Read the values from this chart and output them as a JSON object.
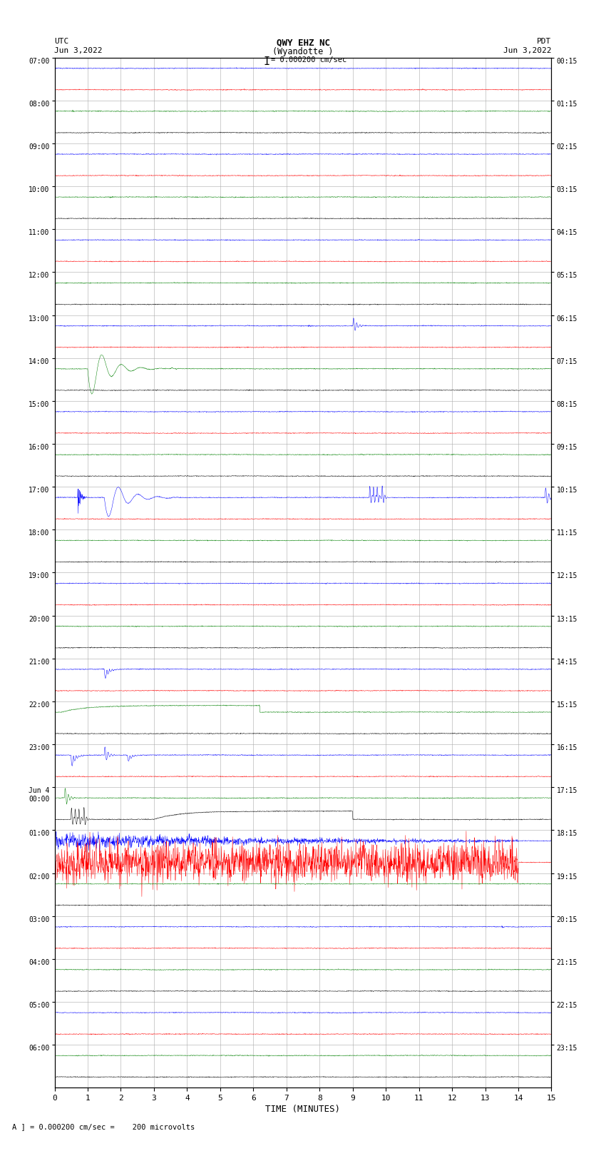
{
  "title_line1": "QWY EHZ NC",
  "title_line2": "(Wyandotte )",
  "scale_text": "= 0.000200 cm/sec",
  "left_header1": "UTC",
  "left_header2": "Jun 3,2022",
  "right_header1": "PDT",
  "right_header2": "Jun 3,2022",
  "xlabel": "TIME (MINUTES)",
  "footer": "A ] = 0.000200 cm/sec =    200 microvolts",
  "utc_labels": [
    "07:00",
    "08:00",
    "09:00",
    "10:00",
    "11:00",
    "12:00",
    "13:00",
    "14:00",
    "15:00",
    "16:00",
    "17:00",
    "18:00",
    "19:00",
    "20:00",
    "21:00",
    "22:00",
    "23:00",
    "Jun 4\n00:00",
    "01:00",
    "02:00",
    "03:00",
    "04:00",
    "05:00",
    "06:00"
  ],
  "pdt_labels": [
    "00:15",
    "01:15",
    "02:15",
    "03:15",
    "04:15",
    "05:15",
    "06:15",
    "07:15",
    "08:15",
    "09:15",
    "10:15",
    "11:15",
    "12:15",
    "13:15",
    "14:15",
    "15:15",
    "16:15",
    "17:15",
    "18:15",
    "19:15",
    "20:15",
    "21:15",
    "22:15",
    "23:15"
  ],
  "n_rows": 24,
  "n_minutes": 15,
  "traces_per_row": 2,
  "colors_cycle": [
    "blue",
    "red",
    "green",
    "black"
  ],
  "background": "white",
  "grid_color": "#aaaaaa",
  "fig_width": 8.5,
  "fig_height": 16.13,
  "seed": 123
}
